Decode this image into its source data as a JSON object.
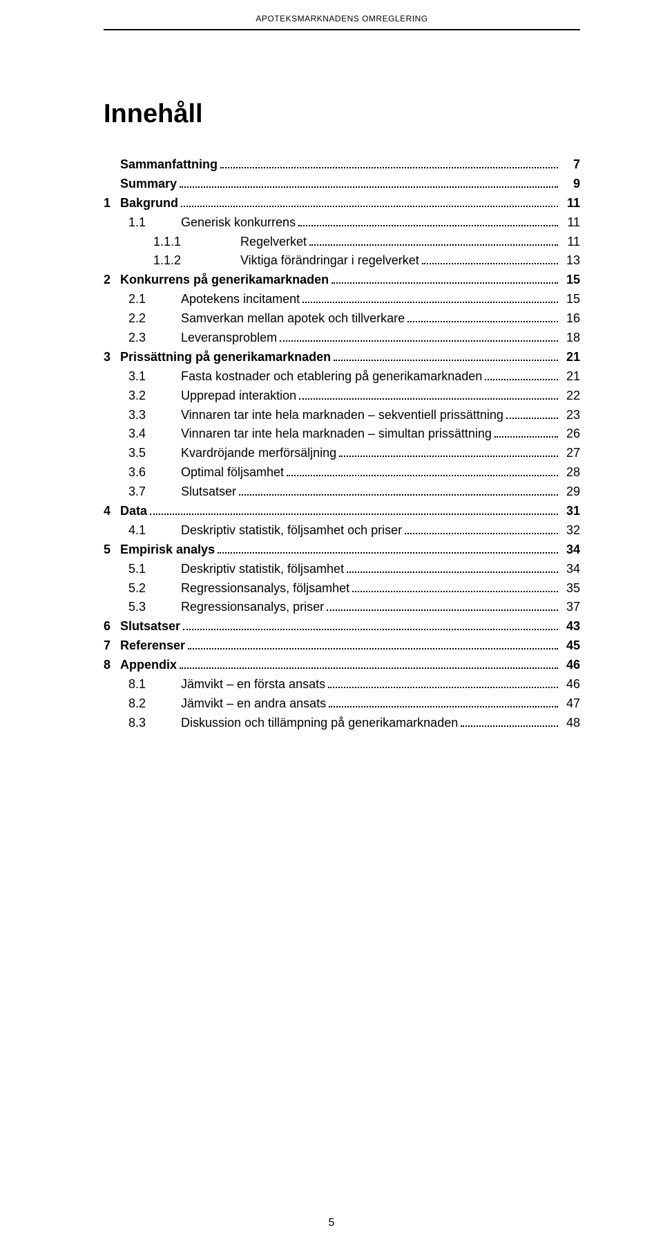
{
  "running_header": "APOTEKSMARKNADENS OMREGLERING",
  "title": "Innehåll",
  "page_number": "5",
  "colors": {
    "text": "#000000",
    "background": "#ffffff",
    "rule": "#000000"
  },
  "typography": {
    "title_fontsize": 38,
    "body_fontsize": 18,
    "header_fontsize": 12,
    "font_family": "Arial"
  },
  "toc": [
    {
      "num": "",
      "label": "Sammanfattning",
      "page": "7",
      "bold": true,
      "level": "top"
    },
    {
      "num": "",
      "label": "Summary",
      "page": "9",
      "bold": true,
      "level": "top"
    },
    {
      "num": "1",
      "label": "Bakgrund",
      "page": "11",
      "bold": true,
      "level": "top"
    },
    {
      "num": "1.1",
      "label": "Generisk konkurrens",
      "page": "11",
      "bold": false,
      "level": "1"
    },
    {
      "num": "1.1.1",
      "label": "Regelverket",
      "page": "11",
      "bold": false,
      "level": "2"
    },
    {
      "num": "1.1.2",
      "label": "Viktiga förändringar i regelverket",
      "page": "13",
      "bold": false,
      "level": "2"
    },
    {
      "num": "2",
      "label": "Konkurrens på generikamarknaden",
      "page": "15",
      "bold": true,
      "level": "top"
    },
    {
      "num": "2.1",
      "label": "Apotekens incitament",
      "page": "15",
      "bold": false,
      "level": "1"
    },
    {
      "num": "2.2",
      "label": "Samverkan mellan apotek och tillverkare",
      "page": "16",
      "bold": false,
      "level": "1"
    },
    {
      "num": "2.3",
      "label": "Leveransproblem",
      "page": "18",
      "bold": false,
      "level": "1"
    },
    {
      "num": "3",
      "label": "Prissättning på generikamarknaden",
      "page": "21",
      "bold": true,
      "level": "top"
    },
    {
      "num": "3.1",
      "label": "Fasta kostnader och etablering på generikamarknaden",
      "page": "21",
      "bold": false,
      "level": "1"
    },
    {
      "num": "3.2",
      "label": "Upprepad interaktion",
      "page": "22",
      "bold": false,
      "level": "1"
    },
    {
      "num": "3.3",
      "label": "Vinnaren tar inte hela marknaden – sekventiell prissättning",
      "page": "23",
      "bold": false,
      "level": "1"
    },
    {
      "num": "3.4",
      "label": "Vinnaren tar inte hela marknaden – simultan prissättning",
      "page": "26",
      "bold": false,
      "level": "1"
    },
    {
      "num": "3.5",
      "label": "Kvardröjande merförsäljning",
      "page": "27",
      "bold": false,
      "level": "1"
    },
    {
      "num": "3.6",
      "label": "Optimal följsamhet",
      "page": "28",
      "bold": false,
      "level": "1"
    },
    {
      "num": "3.7",
      "label": "Slutsatser",
      "page": "29",
      "bold": false,
      "level": "1"
    },
    {
      "num": "4",
      "label": "Data",
      "page": "31",
      "bold": true,
      "level": "top"
    },
    {
      "num": "4.1",
      "label": "Deskriptiv statistik, följsamhet och priser",
      "page": "32",
      "bold": false,
      "level": "1"
    },
    {
      "num": "5",
      "label": "Empirisk analys",
      "page": "34",
      "bold": true,
      "level": "top"
    },
    {
      "num": "5.1",
      "label": "Deskriptiv statistik, följsamhet",
      "page": "34",
      "bold": false,
      "level": "1"
    },
    {
      "num": "5.2",
      "label": "Regressionsanalys, följsamhet",
      "page": "35",
      "bold": false,
      "level": "1"
    },
    {
      "num": "5.3",
      "label": "Regressionsanalys, priser",
      "page": "37",
      "bold": false,
      "level": "1"
    },
    {
      "num": "6",
      "label": "Slutsatser",
      "page": "43",
      "bold": true,
      "level": "top"
    },
    {
      "num": "7",
      "label": "Referenser",
      "page": "45",
      "bold": true,
      "level": "top"
    },
    {
      "num": "8",
      "label": "Appendix",
      "page": "46",
      "bold": true,
      "level": "top"
    },
    {
      "num": "8.1",
      "label": "Jämvikt – en första ansats",
      "page": "46",
      "bold": false,
      "level": "1"
    },
    {
      "num": "8.2",
      "label": "Jämvikt – en andra ansats",
      "page": "47",
      "bold": false,
      "level": "1"
    },
    {
      "num": "8.3",
      "label": "Diskussion och tillämpning på generikamarknaden",
      "page": "48",
      "bold": false,
      "level": "1"
    }
  ]
}
